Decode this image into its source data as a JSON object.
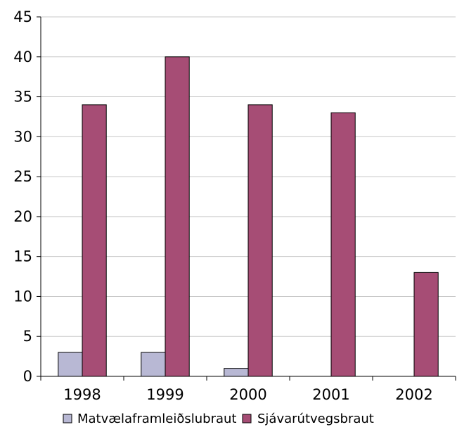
{
  "chart_data": {
    "type": "bar",
    "categories": [
      "1998",
      "1999",
      "2000",
      "2001",
      "2002"
    ],
    "series": [
      {
        "name": "Matvælaframleiðslubraut",
        "values": [
          3,
          3,
          1,
          0,
          0
        ],
        "color": "#b8b8d4"
      },
      {
        "name": "Sjávarútvegsbraut",
        "values": [
          34,
          40,
          34,
          33,
          13
        ],
        "color": "#a64d75"
      }
    ],
    "ylim": [
      0,
      45
    ],
    "yticks": [
      0,
      5,
      10,
      15,
      20,
      25,
      30,
      35,
      40,
      45
    ],
    "grid": true,
    "legend_position": "bottom",
    "title": "",
    "xlabel": "",
    "ylabel": ""
  }
}
